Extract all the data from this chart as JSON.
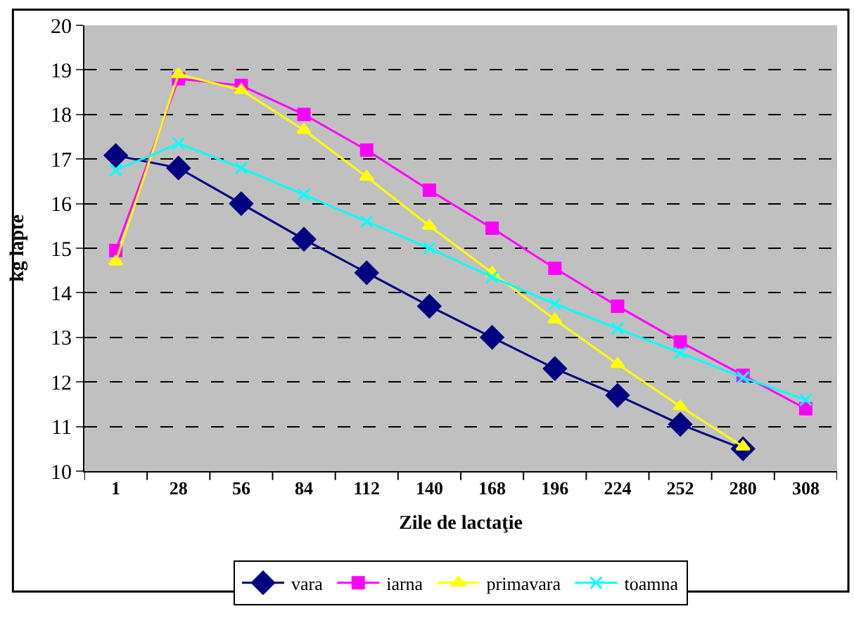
{
  "chart_data": {
    "type": "line",
    "xlabel": "Zile de lactaţie",
    "ylabel": "kg lapte",
    "categories": [
      "1",
      "28",
      "56",
      "84",
      "112",
      "140",
      "168",
      "196",
      "224",
      "252",
      "280",
      "308"
    ],
    "series": [
      {
        "name": "vara",
        "color": "#000080",
        "marker": "diamond",
        "values": [
          17.08,
          16.8,
          16.0,
          15.2,
          14.45,
          13.7,
          13.0,
          12.3,
          11.7,
          11.05,
          10.5,
          null
        ]
      },
      {
        "name": "iarna",
        "color": "#ff00ff",
        "marker": "square",
        "values": [
          14.95,
          18.8,
          18.65,
          18.0,
          17.2,
          16.3,
          15.45,
          14.55,
          13.7,
          12.9,
          12.15,
          11.4
        ]
      },
      {
        "name": "primavara",
        "color": "#ffff00",
        "marker": "triangle",
        "values": [
          14.7,
          18.9,
          18.55,
          17.65,
          16.6,
          15.5,
          14.45,
          13.4,
          12.4,
          11.45,
          10.55,
          null
        ]
      },
      {
        "name": "toamna",
        "color": "#00ffff",
        "marker": "cross",
        "values": [
          16.75,
          17.35,
          16.8,
          16.2,
          15.6,
          15.0,
          14.35,
          13.75,
          13.2,
          12.65,
          12.1,
          11.6
        ]
      }
    ],
    "ylim": [
      10,
      20
    ],
    "yticks": [
      10,
      11,
      12,
      13,
      14,
      15,
      16,
      17,
      18,
      19,
      20
    ],
    "grid": "y",
    "legend": "bottom",
    "line_style": "solid"
  }
}
